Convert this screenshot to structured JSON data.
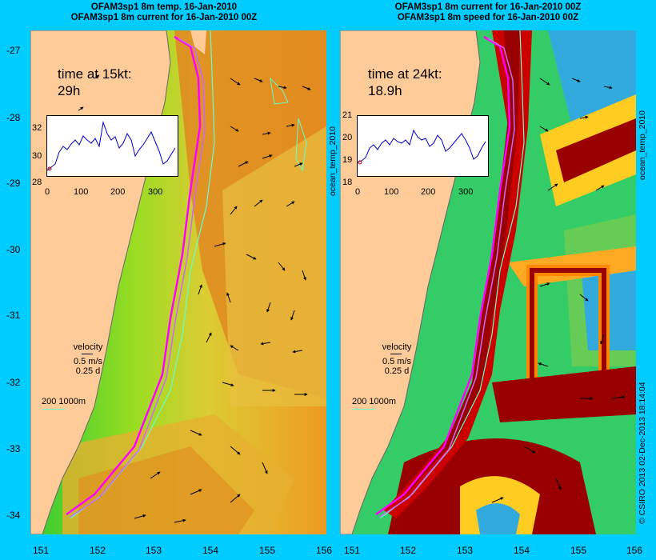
{
  "left_panel": {
    "title_line1": "OFAM3sp1 8m temp. 16-Jan-2010",
    "title_line2": "OFAM3sp1 8m current for 16-Jan-2010 00Z",
    "time_label": "time at 15kt:",
    "time_value": "29h",
    "inset_yticks": [
      "32",
      "30",
      "28"
    ],
    "inset_xticks": [
      "0",
      "100",
      "200",
      "300"
    ],
    "side_label": "ocean_temp_2010"
  },
  "right_panel": {
    "title_line1": "OFAM3sp1 8m current for 16-Jan-2010 00Z",
    "title_line2": "OFAM3sp1 8m speed for 16-Jan-2010 00Z",
    "time_label": "time at 24kt:",
    "time_value": "18.9h",
    "inset_yticks": [
      "21",
      "20",
      "19",
      "18"
    ],
    "inset_xticks": [
      "0",
      "100",
      "200",
      "300"
    ],
    "side_label": "ocean_temp_2010"
  },
  "legend": {
    "velocity": "velocity",
    "speed": "0.5 m/s",
    "duration": "0.25 d",
    "depth_contours": "200  1000m"
  },
  "axes": {
    "lat_ticks": [
      "-27",
      "-28",
      "-29",
      "-30",
      "-31",
      "-32",
      "-33",
      "-34"
    ],
    "lon_ticks": [
      "151",
      "152",
      "153",
      "154",
      "155",
      "156"
    ]
  },
  "credit": "© CSIRO 2013   02-Dec-2013 18:14:04",
  "colors": {
    "background": "#00ccff",
    "land": "#ffcc99",
    "track": "#ff00ff",
    "contour_200": "#66ffcc"
  }
}
